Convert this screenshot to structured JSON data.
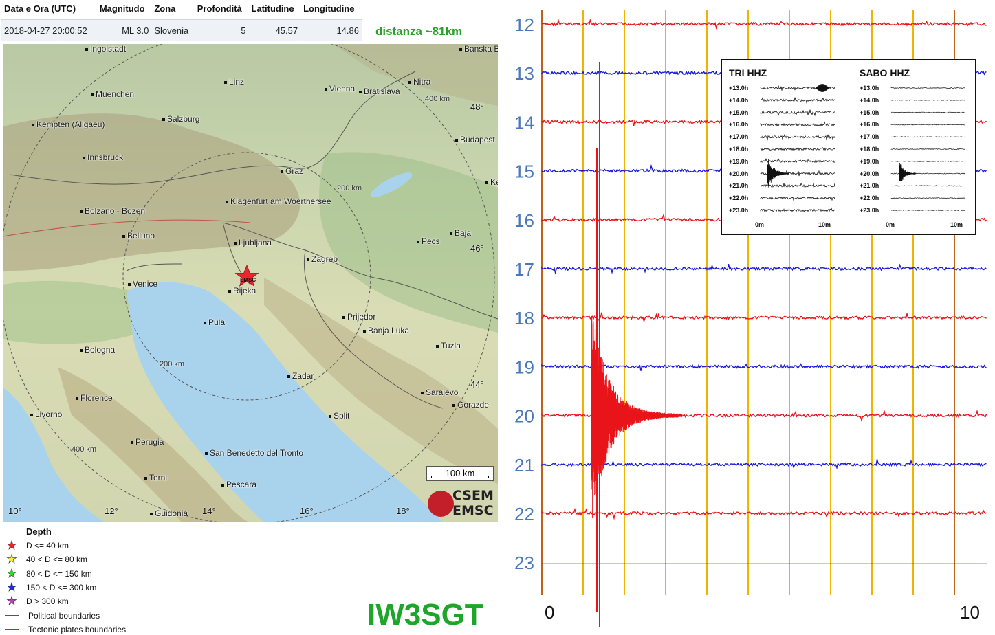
{
  "table": {
    "headers": [
      "Data e Ora (UTC)",
      "Magnitudo",
      "Zona",
      "Profondità",
      "Latitudine",
      "Longitudine"
    ],
    "row": [
      "2018-04-27 20:00:52",
      "ML 3.0",
      "Slovenia",
      "5",
      "45.57",
      "14.86"
    ]
  },
  "distance_label": "distanza ~81km",
  "map": {
    "cities": [
      "Ingolstadt",
      "Muenchen",
      "Kempten (Allgaeu)",
      "Innsbruck",
      "Salzburg",
      "Linz",
      "Vienna",
      "Bratislava",
      "Nitra",
      "Banska B",
      "Budapest",
      "Graz",
      "Klagenfurt am Woerthersee",
      "Bolzano - Bozen",
      "Belluno",
      "Ljubljana",
      "Zagreb",
      "Pecs",
      "Baja",
      "Venice",
      "Rijeka",
      "Pula",
      "Prijedor",
      "Banja Luka",
      "Tuzla",
      "Bologna",
      "Zadar",
      "Sarajevo",
      "Gorazde",
      "Florence",
      "Livorno",
      "Split",
      "Perugia",
      "San Benedetto del Tronto",
      "Terni",
      "Pescara",
      "Guidonia",
      "Ke"
    ],
    "lat_labels": [
      "48°",
      "46°",
      "44°"
    ],
    "lon_labels": [
      "10°",
      "12°",
      "14°",
      "16°",
      "18°"
    ],
    "ring_labels": [
      "400 km",
      "200 km",
      "200 km",
      "400 km"
    ],
    "epicenter_label": "EMSC",
    "scale_label": "100 km",
    "logo_top": "CSEM",
    "logo_bottom": "EMSC",
    "colors": {
      "land": "#c9d5ae",
      "sea": "#a9d3ec",
      "epicenter": "#e8262b"
    }
  },
  "legend": {
    "title": "Depth",
    "items": [
      {
        "label": "D <= 40 km",
        "color": "#e8262b",
        "icon": "star-icon"
      },
      {
        "label": "40 < D <= 80 km",
        "color": "#f5f02a",
        "icon": "star-icon"
      },
      {
        "label": "80 < D <= 150 km",
        "color": "#3ad23a",
        "icon": "star-icon"
      },
      {
        "label": "150 < D <= 300 km",
        "color": "#1f2fd6",
        "icon": "star-icon"
      },
      {
        "label": "D > 300 km",
        "color": "#c43cc4",
        "icon": "star-icon"
      }
    ],
    "lines": [
      {
        "label": "Political boundaries",
        "color": "#555555"
      },
      {
        "label": "Tectonic plates boundaries",
        "color": "#c0282a"
      }
    ]
  },
  "station": "IW3SGT",
  "seismogram": {
    "hours": [
      "12",
      "13",
      "14",
      "15",
      "16",
      "17",
      "18",
      "19",
      "20",
      "21",
      "22",
      "23"
    ],
    "minute_labels": [
      "0",
      "10"
    ],
    "colors": {
      "red": "#e8141a",
      "blue": "#1a1ad8",
      "minute_line": "#f0b400",
      "ten_min_line": "#c2611a"
    },
    "event": {
      "hour": "20",
      "minute": 1.2
    }
  },
  "inset": {
    "left_title": "TRI HHZ",
    "right_title": "SABO HHZ",
    "hours": [
      "+13.0h",
      "+14.0h",
      "+15.0h",
      "+16.0h",
      "+17.0h",
      "+18.0h",
      "+19.0h",
      "+20.0h",
      "+21.0h",
      "+22.0h",
      "+23.0h"
    ],
    "axis_start": "0m",
    "axis_end": "10m"
  }
}
